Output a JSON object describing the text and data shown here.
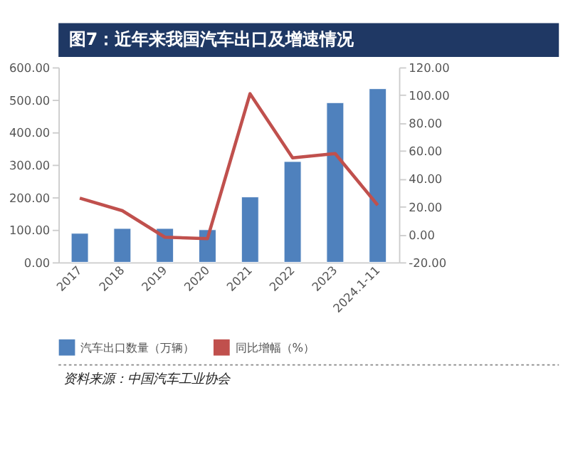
{
  "chart_data": {
    "type": "bar",
    "title": "图7：近年来我国汽车出口及增速情况",
    "categories": [
      "2017",
      "2018",
      "2019",
      "2020",
      "2021",
      "2022",
      "2023",
      "2024.1-11"
    ],
    "series": [
      {
        "name": "汽车出口数量（万辆）",
        "color": "#4f81bd",
        "values": [
          89,
          104,
          104,
          100,
          201,
          310,
          491,
          534
        ]
      },
      {
        "name": "同比增幅（%）",
        "type": "line",
        "axis": "y2",
        "color": "#c0504d",
        "values": [
          26,
          17,
          -2,
          -3,
          101,
          55,
          58,
          21
        ]
      }
    ],
    "ylim": [
      0,
      600
    ],
    "yticks": [
      {
        "value": 0,
        "label": "0.00"
      },
      {
        "value": 100,
        "label": "100.00"
      },
      {
        "value": 200,
        "label": "200.00"
      },
      {
        "value": 300,
        "label": "300.00"
      },
      {
        "value": 400,
        "label": "400.00"
      },
      {
        "value": 500,
        "label": "500.00"
      },
      {
        "value": 600,
        "label": "600.00"
      }
    ],
    "y2lim": [
      -20,
      120
    ],
    "y2ticks": [
      {
        "value": -20,
        "label": "-20.00"
      },
      {
        "value": 0,
        "label": "0.00"
      },
      {
        "value": 20,
        "label": "20.00"
      },
      {
        "value": 40,
        "label": "40.00"
      },
      {
        "value": 60,
        "label": "60.00"
      },
      {
        "value": 80,
        "label": "80.00"
      },
      {
        "value": 100,
        "label": "100.00"
      },
      {
        "value": 120,
        "label": "120.00"
      }
    ],
    "legend": "bottom",
    "grid": false,
    "line_style": "solid",
    "marker": "none",
    "annotations": [
      "资料来源：中国汽车工业协会"
    ]
  }
}
